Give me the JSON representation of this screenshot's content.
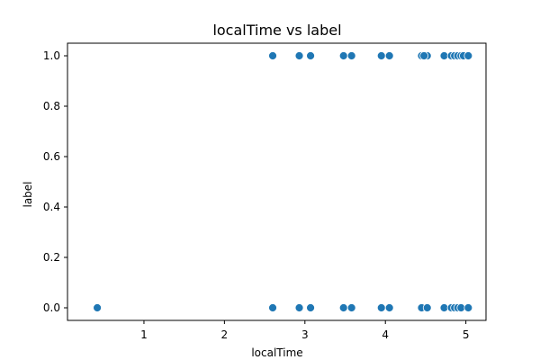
{
  "chart_data": {
    "type": "scatter",
    "title": "localTime vs label",
    "xlabel": "localTime",
    "ylabel": "label",
    "xlim": [
      0.05,
      5.25
    ],
    "ylim": [
      -0.05,
      1.05
    ],
    "xticks": [
      1,
      2,
      3,
      4,
      5
    ],
    "yticks": [
      0.0,
      0.2,
      0.4,
      0.6,
      0.8,
      1.0
    ],
    "xtick_labels": [
      "1",
      "2",
      "3",
      "4",
      "5"
    ],
    "ytick_labels": [
      "0.0",
      "0.2",
      "0.4",
      "0.6",
      "0.8",
      "1.0"
    ],
    "grid": false,
    "legend": "none",
    "color": "#1f77b4",
    "points": [
      {
        "x": 0.42,
        "y": 0
      },
      {
        "x": 2.6,
        "y": 0
      },
      {
        "x": 2.6,
        "y": 1
      },
      {
        "x": 2.93,
        "y": 0
      },
      {
        "x": 2.93,
        "y": 1
      },
      {
        "x": 3.07,
        "y": 0
      },
      {
        "x": 3.07,
        "y": 1
      },
      {
        "x": 3.48,
        "y": 0
      },
      {
        "x": 3.48,
        "y": 1
      },
      {
        "x": 3.58,
        "y": 0
      },
      {
        "x": 3.58,
        "y": 1
      },
      {
        "x": 3.95,
        "y": 0
      },
      {
        "x": 3.95,
        "y": 1
      },
      {
        "x": 4.05,
        "y": 0
      },
      {
        "x": 4.05,
        "y": 1
      },
      {
        "x": 4.45,
        "y": 0
      },
      {
        "x": 4.45,
        "y": 1
      },
      {
        "x": 4.52,
        "y": 0
      },
      {
        "x": 4.52,
        "y": 1
      },
      {
        "x": 4.48,
        "y": 1
      },
      {
        "x": 4.73,
        "y": 0
      },
      {
        "x": 4.73,
        "y": 1
      },
      {
        "x": 4.82,
        "y": 0
      },
      {
        "x": 4.82,
        "y": 1
      },
      {
        "x": 4.86,
        "y": 0
      },
      {
        "x": 4.86,
        "y": 1
      },
      {
        "x": 4.9,
        "y": 0
      },
      {
        "x": 4.9,
        "y": 1
      },
      {
        "x": 4.94,
        "y": 0
      },
      {
        "x": 4.94,
        "y": 1
      },
      {
        "x": 4.97,
        "y": 1
      },
      {
        "x": 5.03,
        "y": 0
      },
      {
        "x": 5.03,
        "y": 1
      }
    ]
  }
}
